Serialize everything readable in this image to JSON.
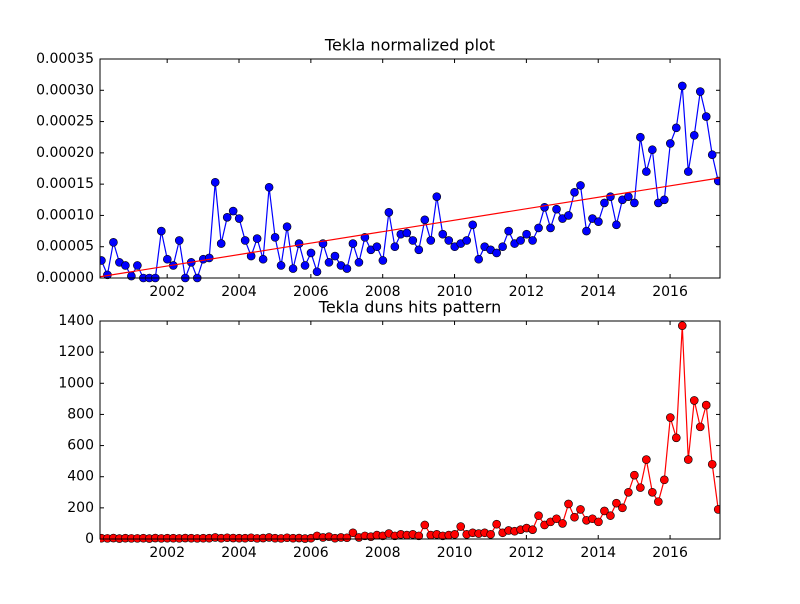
{
  "chart_data": [
    {
      "type": "line",
      "title": "Tekla normalized plot",
      "x_start": 2000.17,
      "x_step": 0.1667,
      "xlim": [
        2000.13,
        2017.39
      ],
      "xticks": [
        2002,
        2004,
        2006,
        2008,
        2010,
        2012,
        2014,
        2016
      ],
      "ylim": [
        0,
        0.00035
      ],
      "yticks": [
        {
          "value": 0,
          "label": "0.00000"
        },
        {
          "value": 5e-05,
          "label": "0.00005"
        },
        {
          "value": 0.0001,
          "label": "0.00010"
        },
        {
          "value": 0.00015,
          "label": "0.00015"
        },
        {
          "value": 0.0002,
          "label": "0.00020"
        },
        {
          "value": 0.00025,
          "label": "0.00025"
        },
        {
          "value": 0.0003,
          "label": "0.00030"
        },
        {
          "value": 0.00035,
          "label": "0.00035"
        }
      ],
      "series": [
        {
          "color": "#0000ff",
          "marker": true,
          "values": [
            2.8e-05,
            5e-06,
            5.7e-05,
            2.5e-05,
            2e-05,
            3e-06,
            2e-05,
            0,
            0,
            0,
            7.5e-05,
            3e-05,
            2e-05,
            6e-05,
            0,
            2.5e-05,
            0,
            3e-05,
            3.2e-05,
            0.000153,
            5.5e-05,
            9.7e-05,
            0.000107,
            9.5e-05,
            6e-05,
            3.5e-05,
            6.3e-05,
            3e-05,
            0.000145,
            6.5e-05,
            2e-05,
            8.2e-05,
            1.5e-05,
            5.5e-05,
            2e-05,
            4e-05,
            1e-05,
            5.5e-05,
            2.5e-05,
            3.5e-05,
            2e-05,
            1.5e-05,
            5.5e-05,
            2.5e-05,
            6.5e-05,
            4.5e-05,
            5e-05,
            2.8e-05,
            0.000105,
            5e-05,
            7e-05,
            7.2e-05,
            6e-05,
            4.5e-05,
            9.3e-05,
            6e-05,
            0.00013,
            7e-05,
            6e-05,
            5e-05,
            5.5e-05,
            6e-05,
            8.5e-05,
            3e-05,
            5e-05,
            4.5e-05,
            4e-05,
            5e-05,
            7.5e-05,
            5.5e-05,
            6e-05,
            7e-05,
            6e-05,
            8e-05,
            0.000113,
            8e-05,
            0.00011,
            9.5e-05,
            0.0001,
            0.000137,
            0.000148,
            7.5e-05,
            9.5e-05,
            9e-05,
            0.00012,
            0.00013,
            8.5e-05,
            0.000125,
            0.00013,
            0.00012,
            0.000225,
            0.00017,
            0.000205,
            0.00012,
            0.000125,
            0.000215,
            0.00024,
            0.000307,
            0.00017,
            0.000228,
            0.000298,
            0.000258,
            0.000197,
            0.000155
          ]
        },
        {
          "color": "#ff0000",
          "marker": false,
          "x": [
            2000.13,
            2017.39
          ],
          "values": [
            2e-06,
            0.00016
          ]
        }
      ]
    },
    {
      "type": "line",
      "title": "Tekla duns hits pattern",
      "x_start": 2000.17,
      "x_step": 0.1667,
      "xlim": [
        2000.13,
        2017.39
      ],
      "xticks": [
        2002,
        2004,
        2006,
        2008,
        2010,
        2012,
        2014,
        2016
      ],
      "ylim": [
        0,
        1400
      ],
      "yticks": [
        0,
        200,
        400,
        600,
        800,
        1000,
        1200,
        1400
      ],
      "series": [
        {
          "color": "#ff0000",
          "marker": true,
          "values": [
            5,
            4,
            6,
            3,
            5,
            4,
            4,
            5,
            3,
            6,
            4,
            5,
            5,
            4,
            6,
            5,
            4,
            5,
            5,
            10,
            5,
            8,
            6,
            5,
            5,
            8,
            4,
            6,
            10,
            5,
            4,
            8,
            5,
            6,
            3,
            5,
            20,
            10,
            15,
            5,
            10,
            8,
            40,
            10,
            20,
            15,
            25,
            20,
            35,
            20,
            30,
            25,
            30,
            20,
            90,
            25,
            30,
            20,
            25,
            30,
            80,
            30,
            40,
            35,
            40,
            30,
            95,
            40,
            55,
            50,
            60,
            70,
            60,
            150,
            90,
            110,
            130,
            100,
            225,
            140,
            190,
            120,
            130,
            110,
            180,
            150,
            230,
            200,
            300,
            410,
            330,
            510,
            300,
            240,
            380,
            780,
            650,
            1370,
            510,
            890,
            720,
            860,
            480,
            190
          ]
        }
      ]
    }
  ]
}
